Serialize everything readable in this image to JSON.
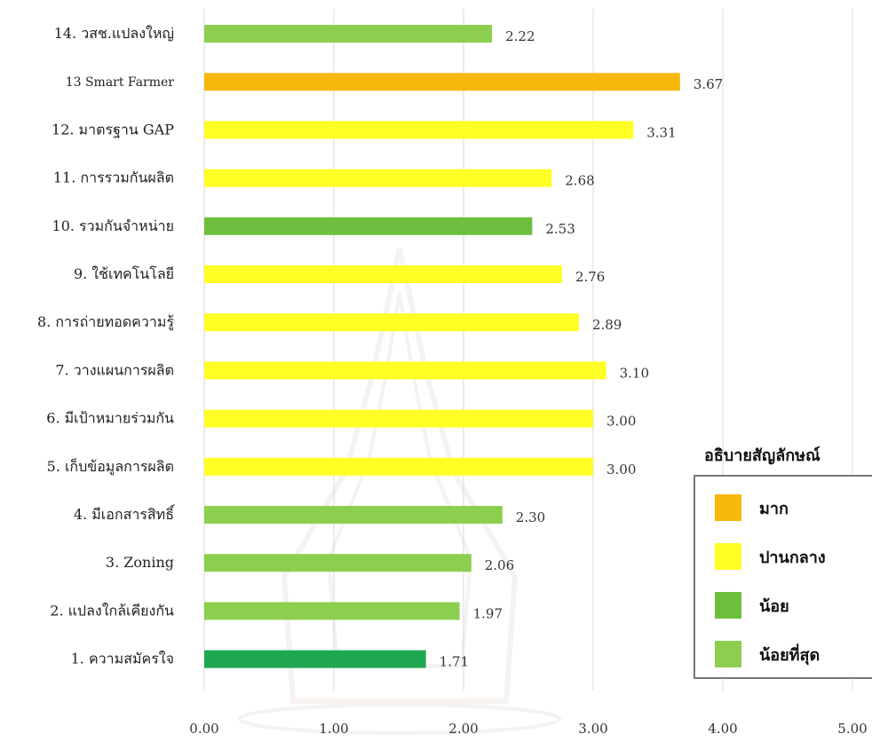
{
  "chart_data": {
    "type": "bar",
    "orientation": "horizontal",
    "categories": [
      "14. วสช.แปลงใหญ่",
      "13 Smart Farmer",
      "12. มาตรฐาน GAP",
      "11. การรวมกันผลิต",
      "10. รวมกันจำหน่าย",
      "9. ใช้เทคโนโลยี",
      "8. การถ่ายทอดความรู้",
      "7. วางแผนการผลิต",
      "6. มีเป้าหมายร่วมกัน",
      "5. เก็บข้อมูลการผลิต",
      "4. มีเอกสารสิทธิ์",
      "3. Zoning",
      "2. แปลงใกล้เคียงกัน",
      "1. ความสมัครใจ"
    ],
    "values": [
      2.22,
      3.67,
      3.31,
      2.68,
      2.53,
      2.76,
      2.89,
      3.1,
      3.0,
      3.0,
      2.3,
      2.06,
      1.97,
      1.71
    ],
    "value_labels": [
      "2.22",
      "3.67",
      "3.31",
      "2.68",
      "2.53",
      "2.76",
      "2.89",
      "3.10",
      "3.00",
      "3.00",
      "2.30",
      "2.06",
      "1.97",
      "1.71"
    ],
    "bar_colors": [
      "#8ccf4f",
      "#f7b80b",
      "#ffff26",
      "#ffff26",
      "#6fbf3f",
      "#ffff26",
      "#ffff26",
      "#ffff26",
      "#ffff26",
      "#ffff26",
      "#8ccf4f",
      "#8ccf4f",
      "#8ccf4f",
      "#1fa84f"
    ],
    "xlim": [
      0,
      5
    ],
    "x_ticks": [
      "0.00",
      "1.00",
      "2.00",
      "3.00",
      "4.00",
      "5.00"
    ],
    "grid": true,
    "title": "",
    "xlabel": "",
    "ylabel": "",
    "legend": {
      "title": "อธิบายสัญลักษณ์",
      "placement": "right",
      "items": [
        {
          "label": "มาก",
          "color": "#f7b80b"
        },
        {
          "label": "ปานกลาง",
          "color": "#ffff26"
        },
        {
          "label": "น้อย",
          "color": "#6fbf3f"
        },
        {
          "label": "น้อยที่สุด",
          "color": "#8ccf4f"
        }
      ]
    }
  }
}
